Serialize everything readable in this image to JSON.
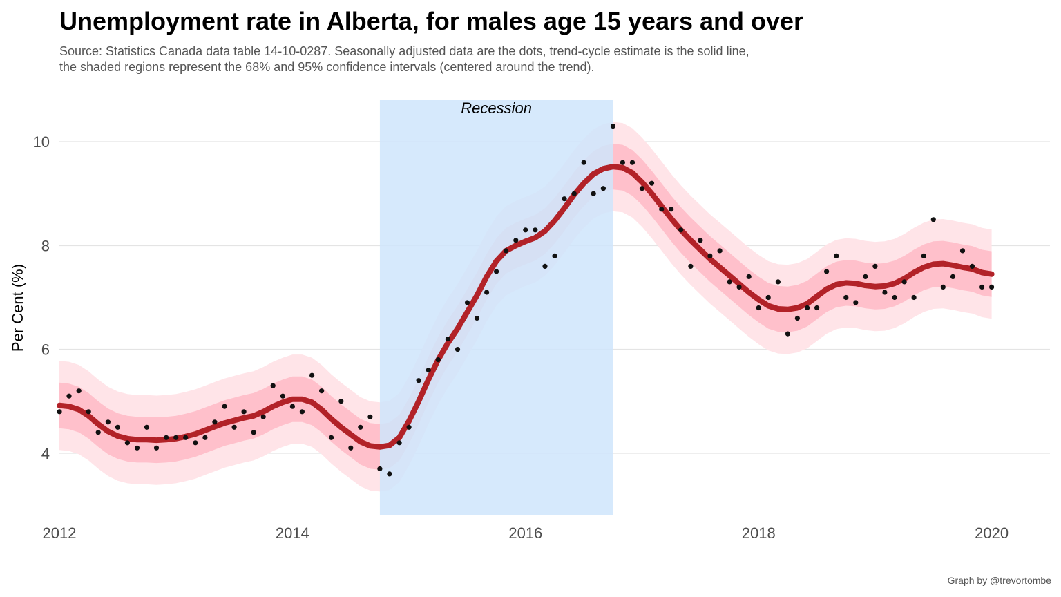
{
  "chart_data": {
    "type": "scatter",
    "title": "Unemployment rate in Alberta, for males age 15 years and over",
    "subtitle_lines": [
      "Source: Statistics Canada data table 14-10-0287. Seasonally adjusted data are the dots, trend-cycle estimate is the solid line,",
      "the shaded regions represent the 68% and 95% confidence intervals (centered around the trend)."
    ],
    "caption": "Graph by @trevortombe",
    "xlabel": "",
    "ylabel": "Per Cent (%)",
    "xlim": [
      2012.0,
      2020.5
    ],
    "ylim": [
      2.8,
      10.8
    ],
    "x_ticks": [
      2012,
      2014,
      2016,
      2018,
      2020
    ],
    "y_ticks": [
      4,
      6,
      8,
      10
    ],
    "grid": "horizontal",
    "recession": {
      "start": 2014.75,
      "end": 2016.75,
      "label": "Recession"
    },
    "colors": {
      "trend": "#b22228",
      "ci68": "#ffc0cb",
      "ci95": "#ffe4e8",
      "recession": "#cfe5fb",
      "points": "#111111",
      "grid": "#e4e4e4"
    },
    "ci68_halfwidth": 0.44,
    "ci95_halfwidth": 0.86,
    "series": [
      {
        "name": "Seasonally adjusted",
        "x": [
          2012.0,
          2012.083,
          2012.167,
          2012.25,
          2012.333,
          2012.417,
          2012.5,
          2012.583,
          2012.667,
          2012.75,
          2012.833,
          2012.917,
          2013.0,
          2013.083,
          2013.167,
          2013.25,
          2013.333,
          2013.417,
          2013.5,
          2013.583,
          2013.667,
          2013.75,
          2013.833,
          2013.917,
          2014.0,
          2014.083,
          2014.167,
          2014.25,
          2014.333,
          2014.417,
          2014.5,
          2014.583,
          2014.667,
          2014.75,
          2014.833,
          2014.917,
          2015.0,
          2015.083,
          2015.167,
          2015.25,
          2015.333,
          2015.417,
          2015.5,
          2015.583,
          2015.667,
          2015.75,
          2015.833,
          2015.917,
          2016.0,
          2016.083,
          2016.167,
          2016.25,
          2016.333,
          2016.417,
          2016.5,
          2016.583,
          2016.667,
          2016.75,
          2016.833,
          2016.917,
          2017.0,
          2017.083,
          2017.167,
          2017.25,
          2017.333,
          2017.417,
          2017.5,
          2017.583,
          2017.667,
          2017.75,
          2017.833,
          2017.917,
          2018.0,
          2018.083,
          2018.167,
          2018.25,
          2018.333,
          2018.417,
          2018.5,
          2018.583,
          2018.667,
          2018.75,
          2018.833,
          2018.917,
          2019.0,
          2019.083,
          2019.167,
          2019.25,
          2019.333,
          2019.417,
          2019.5,
          2019.583,
          2019.667,
          2019.75,
          2019.833,
          2019.917,
          2020.0
        ],
        "y": [
          4.8,
          5.1,
          5.2,
          4.8,
          4.4,
          4.6,
          4.5,
          4.2,
          4.1,
          4.5,
          4.1,
          4.3,
          4.3,
          4.3,
          4.2,
          4.3,
          4.6,
          4.9,
          4.5,
          4.8,
          4.4,
          4.7,
          5.3,
          5.1,
          4.9,
          4.8,
          5.5,
          5.2,
          4.3,
          5.0,
          4.1,
          4.5,
          4.7,
          3.7,
          3.6,
          4.2,
          4.5,
          5.4,
          5.6,
          5.8,
          6.2,
          6.0,
          6.9,
          6.6,
          7.1,
          7.5,
          7.9,
          8.1,
          8.3,
          8.3,
          7.6,
          7.8,
          8.9,
          9.0,
          9.6,
          9.0,
          9.1,
          10.3,
          9.6,
          9.6,
          9.1,
          9.2,
          8.7,
          8.7,
          8.3,
          7.6,
          8.1,
          7.8,
          7.9,
          7.3,
          7.2,
          7.4,
          6.8,
          7.0,
          7.3,
          6.3,
          6.6,
          6.8,
          6.8,
          7.5,
          7.8,
          7.0,
          6.9,
          7.4,
          7.6,
          7.1,
          7.0,
          7.3,
          7.0,
          7.8,
          8.5,
          7.2,
          7.4,
          7.9,
          7.6,
          7.2,
          7.2
        ]
      },
      {
        "name": "Trend-cycle",
        "x": [
          2012.0,
          2012.083,
          2012.167,
          2012.25,
          2012.333,
          2012.417,
          2012.5,
          2012.583,
          2012.667,
          2012.75,
          2012.833,
          2012.917,
          2013.0,
          2013.083,
          2013.167,
          2013.25,
          2013.333,
          2013.417,
          2013.5,
          2013.583,
          2013.667,
          2013.75,
          2013.833,
          2013.917,
          2014.0,
          2014.083,
          2014.167,
          2014.25,
          2014.333,
          2014.417,
          2014.5,
          2014.583,
          2014.667,
          2014.75,
          2014.833,
          2014.917,
          2015.0,
          2015.083,
          2015.167,
          2015.25,
          2015.333,
          2015.417,
          2015.5,
          2015.583,
          2015.667,
          2015.75,
          2015.833,
          2015.917,
          2016.0,
          2016.083,
          2016.167,
          2016.25,
          2016.333,
          2016.417,
          2016.5,
          2016.583,
          2016.667,
          2016.75,
          2016.833,
          2016.917,
          2017.0,
          2017.083,
          2017.167,
          2017.25,
          2017.333,
          2017.417,
          2017.5,
          2017.583,
          2017.667,
          2017.75,
          2017.833,
          2017.917,
          2018.0,
          2018.083,
          2018.167,
          2018.25,
          2018.333,
          2018.417,
          2018.5,
          2018.583,
          2018.667,
          2018.75,
          2018.833,
          2018.917,
          2019.0,
          2019.083,
          2019.167,
          2019.25,
          2019.333,
          2019.417,
          2019.5,
          2019.583,
          2019.667,
          2019.75,
          2019.833,
          2019.917,
          2020.0
        ],
        "y": [
          4.92,
          4.9,
          4.84,
          4.72,
          4.56,
          4.42,
          4.33,
          4.28,
          4.26,
          4.26,
          4.25,
          4.26,
          4.28,
          4.32,
          4.37,
          4.44,
          4.51,
          4.58,
          4.63,
          4.68,
          4.72,
          4.8,
          4.9,
          4.98,
          5.04,
          5.04,
          4.98,
          4.84,
          4.66,
          4.5,
          4.36,
          4.22,
          4.14,
          4.12,
          4.15,
          4.3,
          4.62,
          5.0,
          5.42,
          5.8,
          6.12,
          6.4,
          6.72,
          7.04,
          7.4,
          7.7,
          7.9,
          8.0,
          8.08,
          8.15,
          8.28,
          8.48,
          8.72,
          8.98,
          9.2,
          9.38,
          9.48,
          9.52,
          9.5,
          9.4,
          9.22,
          9.0,
          8.76,
          8.52,
          8.3,
          8.1,
          7.92,
          7.74,
          7.58,
          7.42,
          7.26,
          7.1,
          6.96,
          6.84,
          6.78,
          6.77,
          6.8,
          6.88,
          7.02,
          7.16,
          7.25,
          7.28,
          7.27,
          7.23,
          7.21,
          7.22,
          7.27,
          7.36,
          7.48,
          7.58,
          7.64,
          7.65,
          7.62,
          7.58,
          7.55,
          7.48,
          7.45
        ]
      }
    ]
  }
}
